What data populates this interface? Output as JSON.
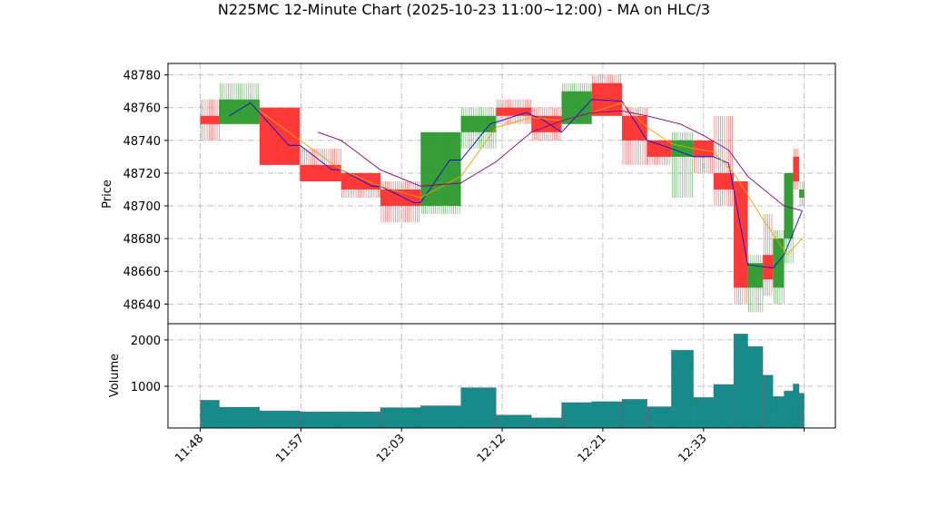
{
  "chart_data": [
    {
      "type": "candlestick",
      "title": "N225MC 12-Minute Chart (2025-10-23 11:00~12:00) - MA on HLC/3",
      "ylabel": "Price",
      "up_color": "#2e9a2e",
      "down_color": "#ff3030",
      "grid": true,
      "xlim": [
        -0.32,
        6.31
      ],
      "xticks": [
        0,
        1,
        2,
        3,
        4,
        5,
        6
      ],
      "ylim": [
        48628,
        48787
      ],
      "yticks": [
        48640,
        48660,
        48680,
        48700,
        48720,
        48740,
        48760,
        48780
      ],
      "candles": [
        {
          "start": 0,
          "end": 0.19,
          "open": 48755,
          "high": 48765,
          "low": 48740,
          "close": 48750
        },
        {
          "start": 0.19,
          "end": 0.59,
          "open": 48750,
          "high": 48775,
          "low": 48750,
          "close": 48765
        },
        {
          "start": 0.59,
          "end": 0.99,
          "open": 48760,
          "high": 48760,
          "low": 48725,
          "close": 48725
        },
        {
          "start": 0.99,
          "end": 1.4,
          "open": 48725,
          "high": 48735,
          "low": 48715,
          "close": 48715
        },
        {
          "start": 1.4,
          "end": 1.79,
          "open": 48720,
          "high": 48720,
          "low": 48705,
          "close": 48710
        },
        {
          "start": 1.79,
          "end": 2.19,
          "open": 48710,
          "high": 48715,
          "low": 48690,
          "close": 48700
        },
        {
          "start": 2.19,
          "end": 2.59,
          "open": 48700,
          "high": 48745,
          "low": 48695,
          "close": 48745
        },
        {
          "start": 2.59,
          "end": 2.94,
          "open": 48745,
          "high": 48760,
          "low": 48735,
          "close": 48755
        },
        {
          "start": 2.94,
          "end": 3.29,
          "open": 48760,
          "high": 48765,
          "low": 48750,
          "close": 48755
        },
        {
          "start": 3.29,
          "end": 3.59,
          "open": 48755,
          "high": 48760,
          "low": 48740,
          "close": 48745
        },
        {
          "start": 3.59,
          "end": 3.89,
          "open": 48750,
          "high": 48775,
          "low": 48750,
          "close": 48770
        },
        {
          "start": 3.89,
          "end": 4.19,
          "open": 48775,
          "high": 48780,
          "low": 48755,
          "close": 48755
        },
        {
          "start": 4.19,
          "end": 4.44,
          "open": 48755,
          "high": 48760,
          "low": 48725,
          "close": 48740
        },
        {
          "start": 4.44,
          "end": 4.68,
          "open": 48740,
          "high": 48740,
          "low": 48725,
          "close": 48730
        },
        {
          "start": 4.68,
          "end": 4.9,
          "open": 48730,
          "high": 48745,
          "low": 48705,
          "close": 48740
        },
        {
          "start": 4.9,
          "end": 5.1,
          "open": 48740,
          "high": 48740,
          "low": 48720,
          "close": 48730
        },
        {
          "start": 5.1,
          "end": 5.3,
          "open": 48720,
          "high": 48755,
          "low": 48700,
          "close": 48710
        },
        {
          "start": 5.3,
          "end": 5.44,
          "open": 48715,
          "high": 48715,
          "low": 48640,
          "close": 48650
        },
        {
          "start": 5.44,
          "end": 5.59,
          "open": 48650,
          "high": 48670,
          "low": 48635,
          "close": 48665
        },
        {
          "start": 5.59,
          "end": 5.69,
          "open": 48670,
          "high": 48695,
          "low": 48645,
          "close": 48655
        },
        {
          "start": 5.69,
          "end": 5.8,
          "open": 48650,
          "high": 48685,
          "low": 48640,
          "close": 48680
        },
        {
          "start": 5.8,
          "end": 5.89,
          "open": 48680,
          "high": 48720,
          "low": 48665,
          "close": 48720
        },
        {
          "start": 5.89,
          "end": 5.95,
          "open": 48730,
          "high": 48735,
          "low": 48710,
          "close": 48715
        },
        {
          "start": 5.95,
          "end": 6.0,
          "open": 48705,
          "high": 48715,
          "low": 48700,
          "close": 48710
        }
      ],
      "series": [
        {
          "color": "#1010d0",
          "x": [
            0.29,
            0.5,
            0.88,
            0.99,
            1.31,
            1.4,
            1.71,
            1.79,
            2.12,
            2.19,
            2.48,
            2.59,
            2.88,
            3.24,
            3.42,
            3.59,
            3.89,
            4.19,
            4.44,
            4.68,
            4.9,
            5.1,
            5.25,
            5.44,
            5.69,
            5.8,
            5.98
          ],
          "values": [
            48755,
            48763,
            48737,
            48737,
            48722,
            48722,
            48712,
            48712,
            48702,
            48702,
            48728,
            48728,
            48750,
            48757,
            48752,
            48745,
            48765,
            48764,
            48740,
            48735,
            48730,
            48730,
            48726,
            48664,
            48662,
            48670,
            48697
          ]
        },
        {
          "color": "#f0a000",
          "x": [
            0.59,
            0.99,
            1.4,
            1.79,
            2.19,
            2.59,
            2.94,
            3.29,
            3.59,
            3.89,
            4.19,
            4.44,
            4.68,
            4.9,
            5.1,
            5.3,
            5.59,
            5.83,
            5.98
          ],
          "values": [
            48758,
            48740,
            48722,
            48712,
            48705,
            48718,
            48748,
            48754,
            48752,
            48757,
            48763,
            48748,
            48738,
            48735,
            48733,
            48720,
            48692,
            48670,
            48680
          ]
        },
        {
          "color": "#800080",
          "x": [
            1.17,
            1.4,
            1.79,
            2.19,
            2.59,
            2.94,
            3.29,
            3.59,
            3.89,
            4.19,
            4.44,
            4.77,
            5.0,
            5.25,
            5.44,
            5.8,
            5.98
          ],
          "values": [
            48745,
            48740,
            48722,
            48712,
            48714,
            48727,
            48745,
            48752,
            48757,
            48758,
            48755,
            48750,
            48743,
            48734,
            48718,
            48700,
            48697
          ]
        }
      ]
    },
    {
      "type": "bar",
      "ylabel": "Volume",
      "color": "#178a8a",
      "edge": "#b03060",
      "grid": true,
      "ylim": [
        100,
        2350
      ],
      "yticks": [
        1000,
        2000
      ],
      "xticks": [
        {
          "value": 0,
          "label": "11:48"
        },
        {
          "value": 1,
          "label": "11:57"
        },
        {
          "value": 2,
          "label": "12:03"
        },
        {
          "value": 3,
          "label": "12:12"
        },
        {
          "value": 4,
          "label": "12:21"
        },
        {
          "value": 5,
          "label": "12:33"
        },
        {
          "value": 6,
          "label": null
        }
      ],
      "values": [
        700,
        550,
        470,
        450,
        450,
        540,
        580,
        970,
        380,
        320,
        650,
        670,
        720,
        560,
        1780,
        760,
        1040,
        2130,
        1860,
        1240,
        780,
        900,
        1050,
        850
      ]
    }
  ]
}
